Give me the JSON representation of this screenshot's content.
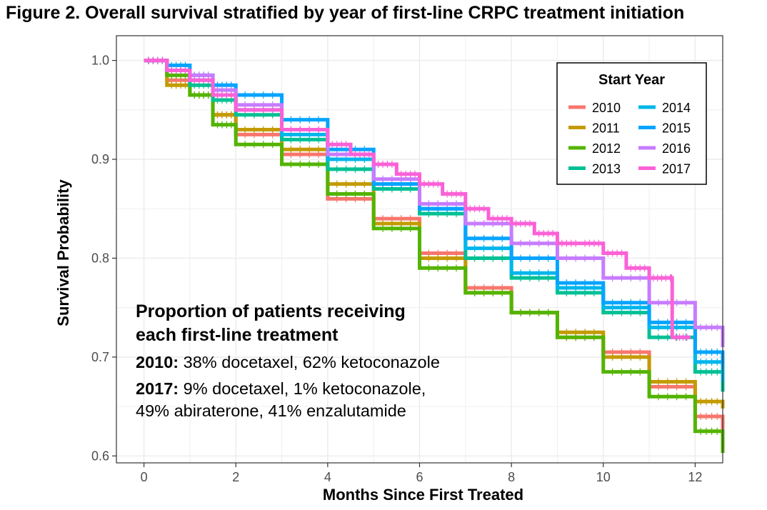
{
  "figure_title": "Figure 2. Overall survival stratified by year of first-line CRPC treatment initiation",
  "annotation": {
    "heading_line1": "Proportion of patients receiving",
    "heading_line2": "each first-line treatment",
    "rows": [
      {
        "year": "2010:",
        "line1": " 38% docetaxel, 62% ketoconazole",
        "line2": ""
      },
      {
        "year": "2017:",
        "line1": " 9% docetaxel, 1% ketoconazole,",
        "line2": "49% abiraterone, 41% enzalutamide"
      }
    ]
  },
  "chart_data": {
    "type": "line",
    "title": "Figure 2. Overall survival stratified by year of first-line CRPC treatment initiation",
    "xlabel": "Months Since First Treated",
    "ylabel": "Survival Probability",
    "xlim": [
      -0.6,
      12.6
    ],
    "ylim": [
      0.593,
      1.025
    ],
    "x_ticks": [
      0,
      2,
      4,
      6,
      8,
      10,
      12
    ],
    "y_ticks": [
      0.6,
      0.7,
      0.8,
      0.9,
      1.0
    ],
    "y_tick_labels": [
      "0.6",
      "0.7",
      "0.8",
      "0.9",
      "1.0"
    ],
    "grid": true,
    "legend": {
      "title": "Start Year",
      "placement": "top-right",
      "columns": 2
    },
    "series": [
      {
        "name": "2010",
        "color": "#F8766D",
        "x": [
          0,
          0.5,
          1,
          1.5,
          2,
          3,
          4,
          5,
          6,
          7,
          8,
          9,
          10,
          11,
          12,
          12.6
        ],
        "y": [
          1.0,
          0.98,
          0.965,
          0.945,
          0.925,
          0.905,
          0.86,
          0.84,
          0.805,
          0.77,
          0.745,
          0.72,
          0.705,
          0.67,
          0.64,
          0.625
        ]
      },
      {
        "name": "2011",
        "color": "#C49A00",
        "x": [
          0,
          0.5,
          1,
          1.5,
          2,
          3,
          4,
          5,
          6,
          7,
          8,
          9,
          10,
          11,
          12,
          12.6
        ],
        "y": [
          1.0,
          0.975,
          0.965,
          0.945,
          0.93,
          0.91,
          0.875,
          0.835,
          0.8,
          0.765,
          0.745,
          0.725,
          0.7,
          0.675,
          0.655,
          0.648
        ]
      },
      {
        "name": "2012",
        "color": "#53B400",
        "x": [
          0,
          0.5,
          1,
          1.5,
          2,
          3,
          4,
          5,
          6,
          7,
          8,
          9,
          10,
          11,
          12,
          12.6
        ],
        "y": [
          1.0,
          0.985,
          0.965,
          0.935,
          0.915,
          0.895,
          0.865,
          0.83,
          0.79,
          0.765,
          0.745,
          0.72,
          0.685,
          0.66,
          0.625,
          0.603
        ]
      },
      {
        "name": "2013",
        "color": "#00C094",
        "x": [
          0,
          0.5,
          1,
          1.5,
          2,
          3,
          4,
          5,
          6,
          7,
          8,
          9,
          10,
          11,
          12,
          12.6
        ],
        "y": [
          1.0,
          0.99,
          0.975,
          0.96,
          0.945,
          0.92,
          0.89,
          0.87,
          0.845,
          0.8,
          0.78,
          0.765,
          0.745,
          0.72,
          0.685,
          0.665
        ]
      },
      {
        "name": "2014",
        "color": "#00B6EB",
        "x": [
          0,
          0.5,
          1,
          1.5,
          2,
          3,
          4,
          5,
          6,
          7,
          8,
          9,
          10,
          11,
          12,
          12.6
        ],
        "y": [
          1.0,
          0.99,
          0.98,
          0.965,
          0.95,
          0.925,
          0.9,
          0.875,
          0.85,
          0.81,
          0.785,
          0.77,
          0.75,
          0.73,
          0.695,
          0.675
        ]
      },
      {
        "name": "2015",
        "color": "#06A4FF",
        "x": [
          0,
          0.5,
          1,
          1.5,
          2,
          3,
          4,
          5,
          6,
          7,
          8,
          9,
          10,
          11,
          12,
          12.6
        ],
        "y": [
          1.0,
          0.995,
          0.985,
          0.975,
          0.965,
          0.94,
          0.91,
          0.875,
          0.85,
          0.82,
          0.8,
          0.775,
          0.755,
          0.735,
          0.705,
          0.69
        ]
      },
      {
        "name": "2016",
        "color": "#C77CFF",
        "x": [
          0,
          0.5,
          1,
          1.5,
          2,
          3,
          4,
          5,
          6,
          7,
          8,
          9,
          10,
          11,
          12,
          12.6
        ],
        "y": [
          1.0,
          0.99,
          0.985,
          0.97,
          0.955,
          0.93,
          0.905,
          0.88,
          0.855,
          0.835,
          0.815,
          0.8,
          0.78,
          0.755,
          0.73,
          0.71
        ]
      },
      {
        "name": "2017",
        "color": "#FB61D7",
        "x": [
          0,
          0.5,
          1,
          1.5,
          2,
          3,
          4,
          4.5,
          5,
          5.5,
          6,
          6.5,
          7,
          7.5,
          8,
          8.5,
          9,
          9.5,
          10,
          10.5,
          11,
          11.45,
          11.5,
          11.9
        ],
        "y": [
          1.0,
          0.99,
          0.98,
          0.965,
          0.95,
          0.93,
          0.915,
          0.905,
          0.895,
          0.885,
          0.875,
          0.865,
          0.85,
          0.84,
          0.835,
          0.825,
          0.815,
          0.815,
          0.805,
          0.79,
          0.78,
          0.78,
          0.72,
          0.72
        ]
      }
    ]
  }
}
